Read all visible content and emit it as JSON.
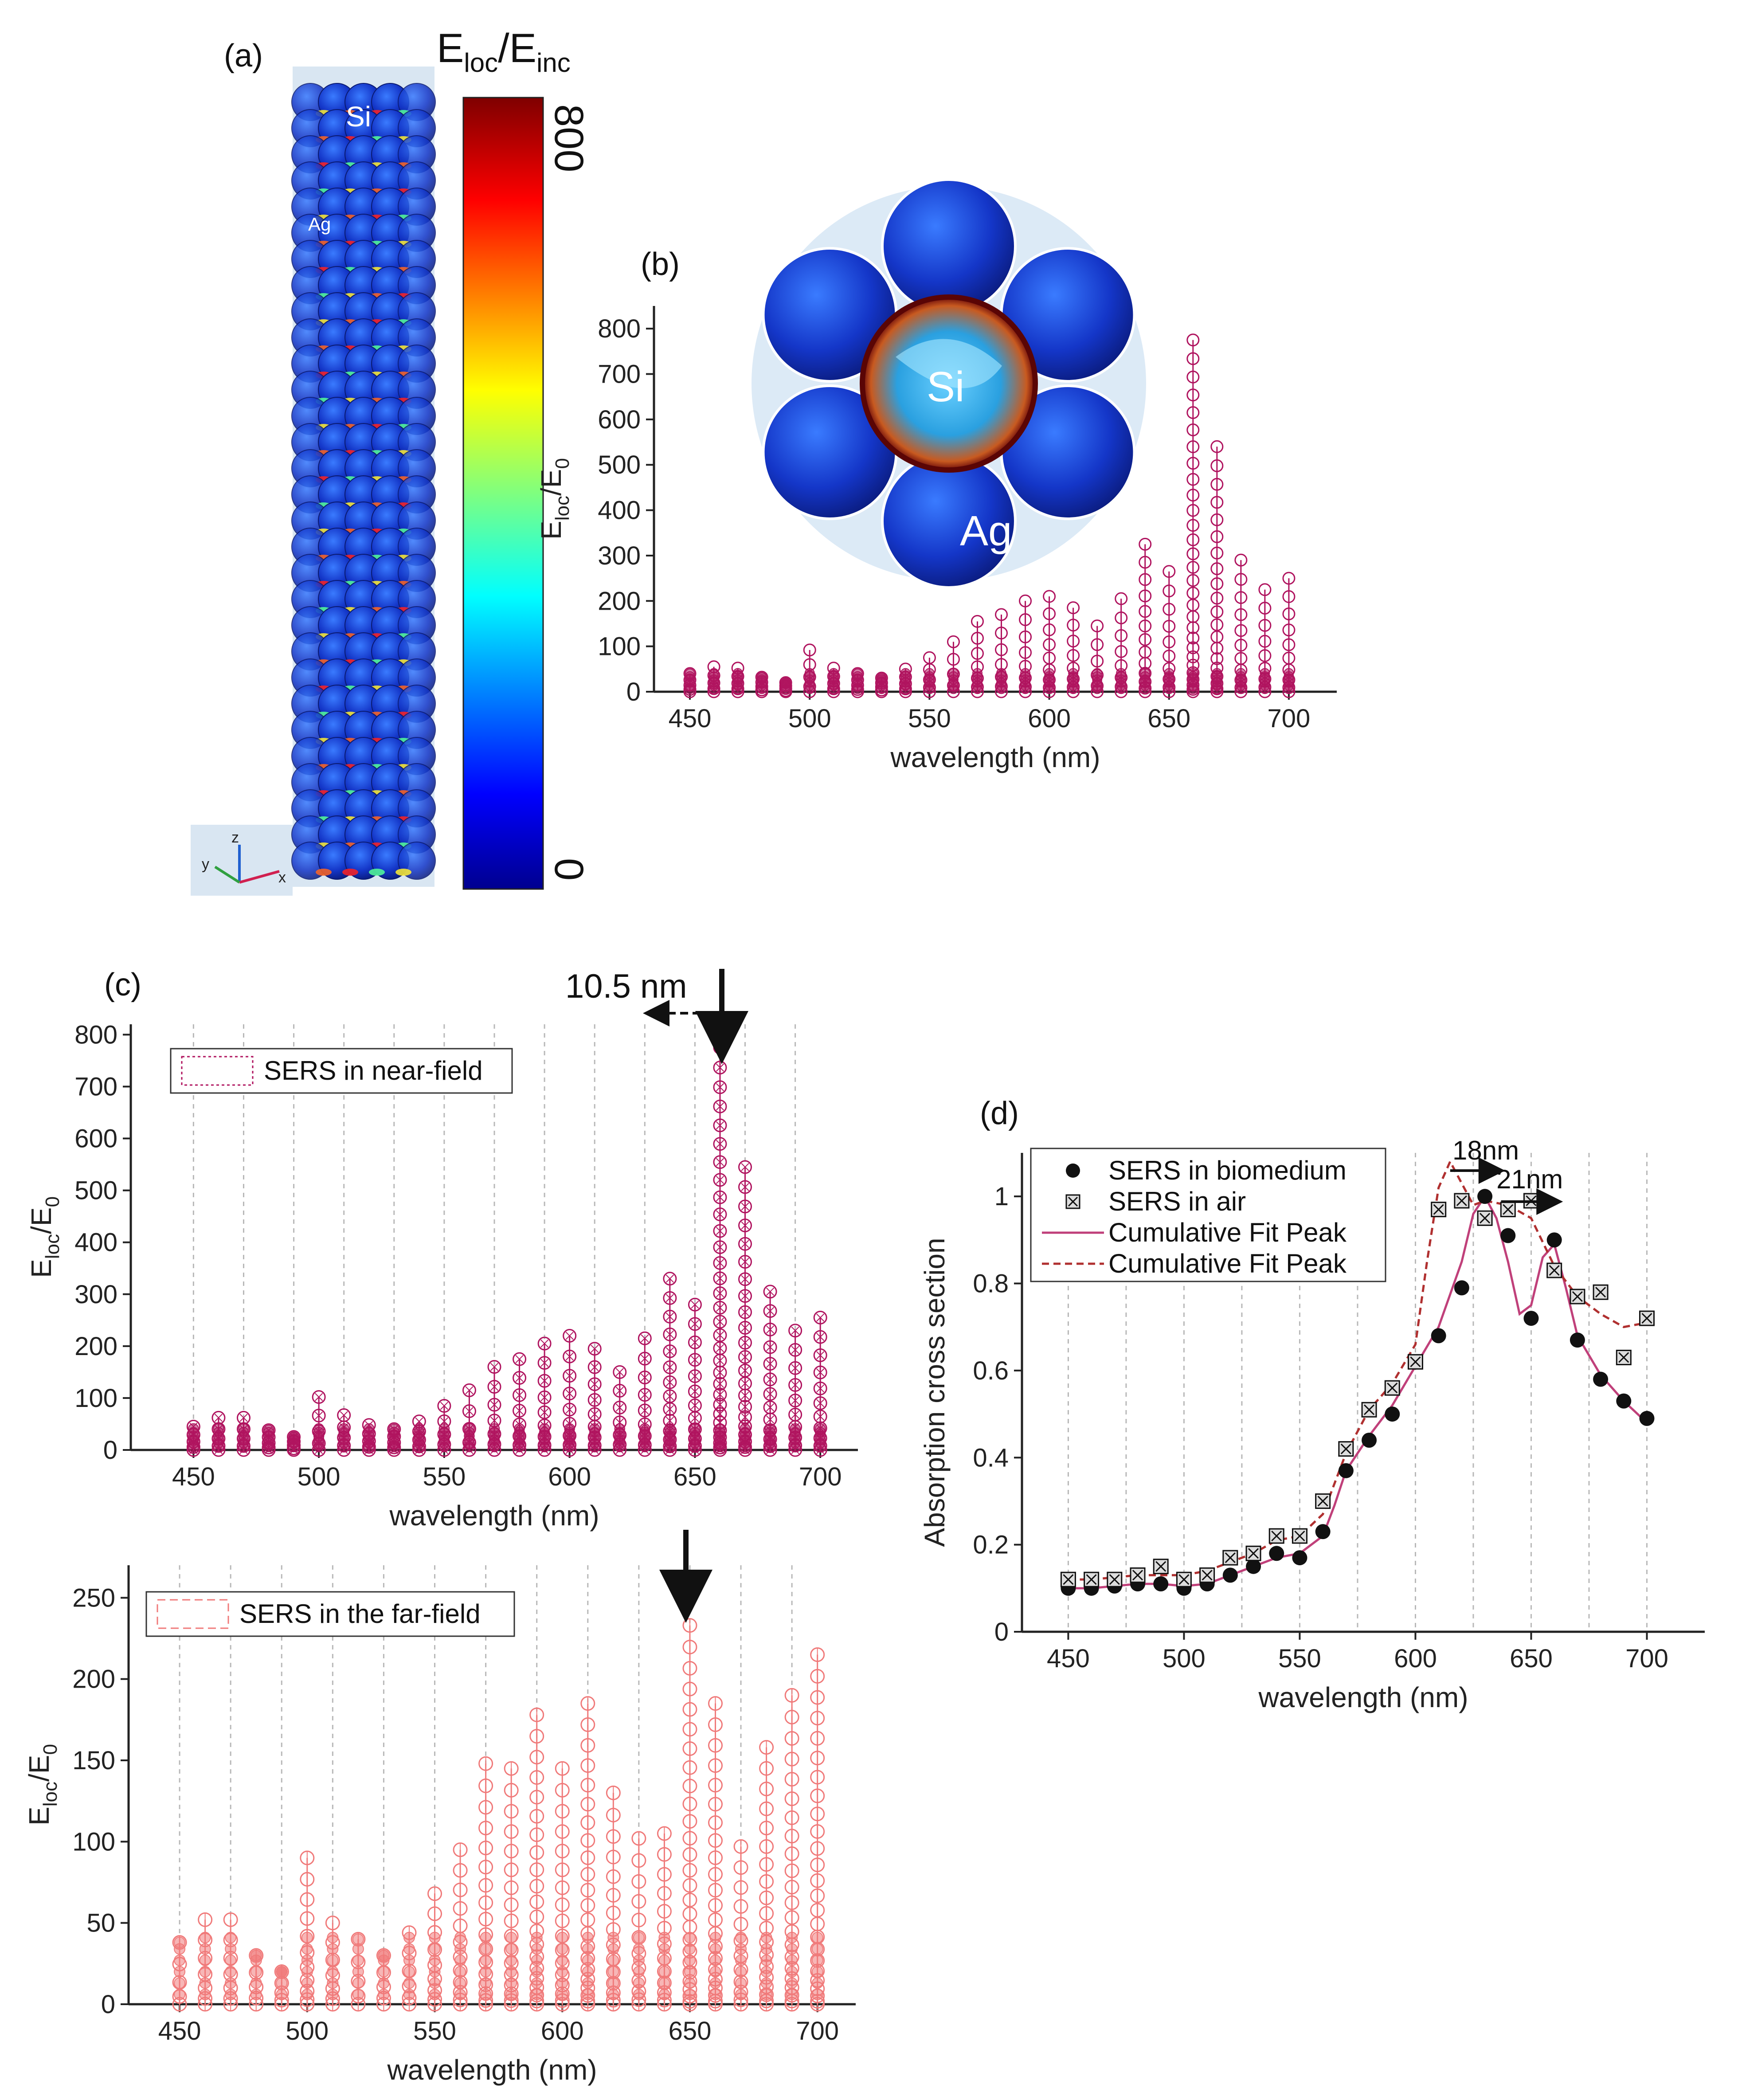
{
  "panel_a": {
    "label": "(a)",
    "colorbar_title_main": "E",
    "colorbar_title_sub1": "loc",
    "colorbar_title_sep": "/E",
    "colorbar_title_sub2": "inc",
    "colorbar_max": "800",
    "colorbar_min": "0",
    "label_si": "Si",
    "label_ag": "Ag",
    "axis_x": "x",
    "axis_y": "y",
    "axis_z": "z"
  },
  "inset_b": {
    "label_si": "Si",
    "label_ag": "Ag"
  },
  "colors": {
    "near_field": "#b0145f",
    "far_field": "#f07a7a",
    "biomedium_line": "#c0407a",
    "air_line": "#b03030"
  },
  "chart_data": [
    {
      "id": "b",
      "panel_label": "(b)",
      "type": "scatter",
      "xlabel": "wavelength (nm)",
      "ylabel_main": "E",
      "ylabel_sub1": "loc",
      "ylabel_sep": "/E",
      "ylabel_sub2": "0",
      "xlim": [
        435,
        720
      ],
      "ylim": [
        0,
        850
      ],
      "xticks": [
        450,
        500,
        550,
        600,
        650,
        700
      ],
      "yticks": [
        0,
        100,
        200,
        300,
        400,
        500,
        600,
        700,
        800
      ],
      "x": [
        450,
        460,
        470,
        480,
        490,
        500,
        510,
        520,
        530,
        540,
        550,
        560,
        570,
        580,
        590,
        600,
        610,
        620,
        630,
        640,
        650,
        660,
        670,
        680,
        690,
        700
      ],
      "max": [
        40,
        55,
        52,
        32,
        20,
        92,
        52,
        40,
        30,
        50,
        75,
        110,
        155,
        170,
        200,
        210,
        185,
        145,
        205,
        325,
        265,
        775,
        540,
        290,
        225,
        250
      ]
    },
    {
      "id": "c_top",
      "panel_label": "(c)",
      "type": "scatter",
      "legend": "SERS in near-field",
      "annotation": "10.5 nm",
      "xlabel": "wavelength (nm)",
      "ylabel_main": "E",
      "ylabel_sub1": "loc",
      "ylabel_sep": "/E",
      "ylabel_sub2": "0",
      "xlim": [
        425,
        715
      ],
      "ylim": [
        0,
        820
      ],
      "xticks": [
        450,
        500,
        550,
        600,
        650,
        700
      ],
      "yticks": [
        0,
        100,
        200,
        300,
        400,
        500,
        600,
        700,
        800
      ],
      "x": [
        450,
        460,
        470,
        480,
        490,
        500,
        510,
        520,
        530,
        540,
        550,
        560,
        570,
        580,
        590,
        600,
        610,
        620,
        630,
        640,
        650,
        660,
        670,
        680,
        690,
        700
      ],
      "max": [
        45,
        62,
        62,
        38,
        25,
        102,
        67,
        48,
        40,
        55,
        85,
        115,
        160,
        175,
        205,
        220,
        195,
        150,
        215,
        330,
        280,
        775,
        545,
        305,
        230,
        255
      ]
    },
    {
      "id": "c_bottom",
      "type": "scatter",
      "legend": "SERS in the far-field",
      "xlabel": "wavelength (nm)",
      "ylabel_main": "E",
      "ylabel_sub1": "loc",
      "ylabel_sep": "/E",
      "ylabel_sub2": "0",
      "xlim": [
        430,
        715
      ],
      "ylim": [
        0,
        270
      ],
      "xticks": [
        450,
        500,
        550,
        600,
        650,
        700
      ],
      "yticks": [
        0,
        50,
        100,
        150,
        200,
        250
      ],
      "x": [
        450,
        460,
        470,
        480,
        490,
        500,
        510,
        520,
        530,
        540,
        550,
        560,
        570,
        580,
        590,
        600,
        610,
        620,
        630,
        640,
        650,
        660,
        670,
        680,
        690,
        700
      ],
      "max": [
        38,
        52,
        52,
        30,
        20,
        90,
        50,
        40,
        30,
        44,
        68,
        95,
        148,
        145,
        178,
        145,
        185,
        130,
        102,
        105,
        233,
        185,
        97,
        158,
        190,
        215
      ]
    },
    {
      "id": "d",
      "panel_label": "(d)",
      "type": "scatter",
      "xlabel": "wavelength (nm)",
      "ylabel": "Absorption cross section",
      "xlim": [
        430,
        725
      ],
      "ylim": [
        0,
        1.1
      ],
      "xticks": [
        450,
        500,
        550,
        600,
        650,
        700
      ],
      "yticks": [
        0,
        0.2,
        0.4,
        0.6,
        0.8,
        1
      ],
      "ytick_labels": [
        "0",
        "0.2",
        "0.4",
        "0.6",
        "0.8",
        "1"
      ],
      "annotations": [
        "18nm",
        "21nm"
      ],
      "series": [
        {
          "name": "SERS in biomedium",
          "marker": "filled-circle",
          "x": [
            450,
            460,
            470,
            480,
            490,
            500,
            510,
            520,
            530,
            540,
            550,
            560,
            570,
            580,
            590,
            600,
            610,
            620,
            630,
            640,
            650,
            660,
            670,
            680,
            690,
            700
          ],
          "y": [
            0.1,
            0.1,
            0.105,
            0.11,
            0.11,
            0.1,
            0.11,
            0.13,
            0.15,
            0.18,
            0.17,
            0.23,
            0.37,
            0.44,
            0.5,
            0.62,
            0.68,
            0.79,
            1.0,
            0.91,
            0.72,
            0.9,
            0.67,
            0.58,
            0.53,
            0.49
          ]
        },
        {
          "name": "SERS in air",
          "marker": "boxed-x",
          "x": [
            450,
            460,
            470,
            480,
            490,
            500,
            510,
            520,
            530,
            540,
            550,
            560,
            570,
            580,
            590,
            600,
            610,
            620,
            630,
            640,
            650,
            660,
            670,
            680,
            690,
            700
          ],
          "y": [
            0.12,
            0.12,
            0.12,
            0.13,
            0.15,
            0.12,
            0.13,
            0.17,
            0.18,
            0.22,
            0.22,
            0.3,
            0.42,
            0.51,
            0.56,
            0.62,
            0.97,
            0.99,
            0.95,
            0.97,
            0.99,
            0.83,
            0.77,
            0.78,
            0.63,
            0.72
          ]
        },
        {
          "name": "Cumulative Fit Peak",
          "style": "solid",
          "x": [
            450,
            460,
            470,
            480,
            490,
            500,
            510,
            520,
            530,
            540,
            550,
            560,
            565,
            570,
            580,
            590,
            600,
            610,
            620,
            625,
            630,
            635,
            640,
            645,
            650,
            655,
            660,
            665,
            670,
            680,
            690,
            700
          ],
          "y": [
            0.1,
            0.1,
            0.105,
            0.11,
            0.11,
            0.105,
            0.11,
            0.13,
            0.15,
            0.17,
            0.18,
            0.22,
            0.29,
            0.37,
            0.45,
            0.52,
            0.61,
            0.7,
            0.85,
            0.96,
            1.0,
            0.95,
            0.85,
            0.73,
            0.75,
            0.86,
            0.89,
            0.79,
            0.68,
            0.59,
            0.53,
            0.48
          ]
        },
        {
          "name": "Cumulative Fit Peak",
          "style": "dashed",
          "x": [
            450,
            460,
            470,
            480,
            490,
            500,
            510,
            520,
            530,
            540,
            550,
            560,
            570,
            580,
            590,
            600,
            605,
            610,
            615,
            620,
            625,
            630,
            640,
            650,
            660,
            670,
            680,
            690,
            700
          ],
          "y": [
            0.12,
            0.12,
            0.125,
            0.13,
            0.13,
            0.13,
            0.14,
            0.16,
            0.18,
            0.21,
            0.22,
            0.27,
            0.41,
            0.51,
            0.57,
            0.66,
            0.85,
            1.02,
            1.08,
            1.03,
            0.98,
            0.99,
            0.98,
            0.95,
            0.84,
            0.77,
            0.73,
            0.7,
            0.71
          ]
        }
      ]
    }
  ]
}
